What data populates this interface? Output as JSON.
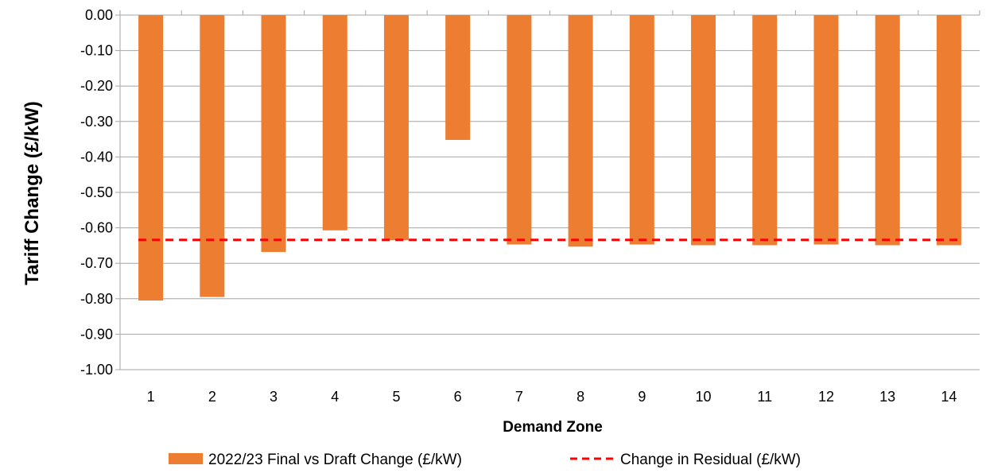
{
  "chart_data": {
    "type": "bar",
    "title": "",
    "xlabel": "Demand Zone",
    "ylabel": "Tariff Change (£/kW)",
    "categories": [
      "1",
      "2",
      "3",
      "4",
      "5",
      "6",
      "7",
      "8",
      "9",
      "10",
      "11",
      "12",
      "13",
      "14"
    ],
    "series": [
      {
        "name": "2022/23 Final vs Draft Change (£/kW)",
        "type": "bar",
        "color": "#ED7D31",
        "values": [
          -0.805,
          -0.795,
          -0.668,
          -0.607,
          -0.635,
          -0.352,
          -0.647,
          -0.653,
          -0.647,
          -0.649,
          -0.649,
          -0.647,
          -0.649,
          -0.649
        ]
      },
      {
        "name": "Change in Residual (£/kW)",
        "type": "line",
        "style": "dashed",
        "color": "#FF0000",
        "value": -0.634
      }
    ],
    "ylim": [
      -1.0,
      0.0
    ],
    "yticks": [
      "0.00",
      "-0.10",
      "-0.20",
      "-0.30",
      "-0.40",
      "-0.50",
      "-0.60",
      "-0.70",
      "-0.80",
      "-0.90",
      "-1.00"
    ],
    "grid": true,
    "legend_position": "bottom"
  }
}
